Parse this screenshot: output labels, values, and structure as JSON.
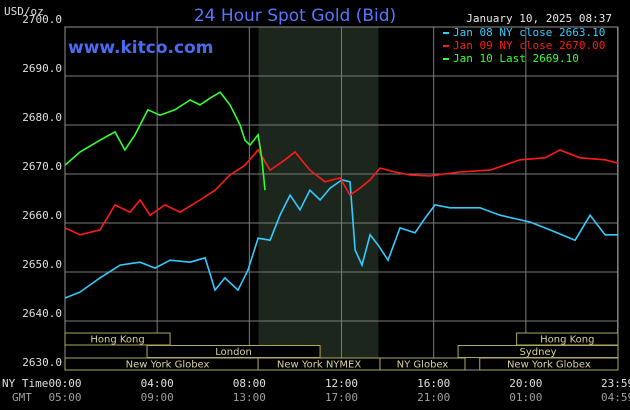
{
  "chart_data": {
    "type": "line",
    "title": "24 Hour Spot Gold (Bid)",
    "unit_label": "USD/oz",
    "timestamp": "January 10, 2025 08:37",
    "watermark": "www.kitco.com",
    "time_zones": [
      "NY Time",
      "GMT"
    ],
    "xlim": [
      0,
      24
    ],
    "xticks": [
      {
        "value": 0,
        "label": "00:00"
      },
      {
        "value": 4,
        "label": "04:00"
      },
      {
        "value": 8,
        "label": "08:00"
      },
      {
        "value": 12,
        "label": "12:00"
      },
      {
        "value": 16,
        "label": "16:00"
      },
      {
        "value": 20,
        "label": "20:00"
      },
      {
        "value": 23.98,
        "label": "23:59"
      }
    ],
    "gmt_ticks": [
      {
        "value": 0,
        "label": "05:00"
      },
      {
        "value": 4,
        "label": "09:00"
      },
      {
        "value": 8,
        "label": "13:00"
      },
      {
        "value": 12,
        "label": "17:00"
      },
      {
        "value": 16,
        "label": "21:00"
      },
      {
        "value": 20,
        "label": "01:00"
      },
      {
        "value": 23.98,
        "label": "04:59"
      }
    ],
    "ylim": [
      2630,
      2700
    ],
    "yticks": [
      {
        "value": 2630,
        "label": "2630.0"
      },
      {
        "value": 2640,
        "label": "2640.0"
      },
      {
        "value": 2650,
        "label": "2650.0"
      },
      {
        "value": 2660,
        "label": "2660.0"
      },
      {
        "value": 2670,
        "label": "2670.0"
      },
      {
        "value": 2680,
        "label": "2680.0"
      },
      {
        "value": 2690,
        "label": "2690.0"
      },
      {
        "value": 2700,
        "label": "2700.0"
      }
    ],
    "grid": true,
    "shade": [
      8.4,
      13.6
    ],
    "session_rows": [
      [
        {
          "label": "Hong Kong",
          "start": 0,
          "end": 4.56
        },
        {
          "label": "Hong Kong",
          "start": 19.6,
          "end": 24
        }
      ],
      [
        {
          "label": "London",
          "start": 3.56,
          "end": 11.07
        },
        {
          "label": "Sydney",
          "start": 17.06,
          "end": 24
        }
      ],
      [
        {
          "label": "New York Globex",
          "start": 0,
          "end": 8.9
        },
        {
          "label": "New York NYMEX",
          "start": 8.38,
          "end": 13.67
        },
        {
          "label": "NY Globex",
          "start": 13.67,
          "end": 17.36
        },
        {
          "label": "New York Globex",
          "start": 18.0,
          "end": 24
        }
      ]
    ],
    "series": [
      {
        "name": "Jan 08 NY close 2663.10",
        "color": "#33ccff",
        "x": [
          0,
          0.65,
          1.52,
          2.39,
          3.26,
          3.91,
          4.56,
          5.43,
          6.08,
          6.51,
          6.94,
          7.51,
          7.94,
          8.38,
          8.9,
          9.33,
          9.77,
          10.2,
          10.63,
          11.07,
          11.5,
          12.02,
          12.37,
          12.59,
          12.89,
          13.24,
          13.59,
          14.02,
          14.54,
          15.19,
          15.63,
          16.06,
          16.71,
          18.01,
          18.88,
          20.18,
          21.05,
          22.14,
          22.79,
          23.44,
          24
        ],
        "values": [
          2644.7,
          2645.9,
          2648.8,
          2651.4,
          2652,
          2650.8,
          2652.4,
          2652,
          2652.9,
          2646.3,
          2648.8,
          2646.3,
          2650.4,
          2656.9,
          2656.5,
          2661.6,
          2665.7,
          2662.7,
          2666.7,
          2664.7,
          2667.1,
          2668.8,
          2668.4,
          2654.5,
          2651.4,
          2657.6,
          2655.5,
          2652.4,
          2659,
          2658,
          2661,
          2663.7,
          2663.1,
          2663.1,
          2661.6,
          2660.2,
          2658.6,
          2656.5,
          2661.6,
          2657.6,
          2657.6
        ]
      },
      {
        "name": "Jan 09 NY close 2670.00",
        "color": "#ff1a1a",
        "x": [
          0,
          0.65,
          1.52,
          2.17,
          2.82,
          3.26,
          3.69,
          4.34,
          4.99,
          5.86,
          6.51,
          7.16,
          7.81,
          8.38,
          8.9,
          9.55,
          9.98,
          10.63,
          11.28,
          11.94,
          12.37,
          12.8,
          13.24,
          13.67,
          14.32,
          14.97,
          15.84,
          17.14,
          18.45,
          19.75,
          20.83,
          21.48,
          22.35,
          23.44,
          24
        ],
        "values": [
          2659,
          2657.6,
          2658.6,
          2663.7,
          2662.2,
          2664.7,
          2661.6,
          2663.7,
          2662.2,
          2664.7,
          2666.7,
          2669.8,
          2671.8,
          2674.9,
          2670.8,
          2672.9,
          2674.5,
          2670.8,
          2668.4,
          2669.2,
          2665.7,
          2667.1,
          2668.8,
          2671.2,
          2670.4,
          2669.8,
          2669.6,
          2670.4,
          2670.8,
          2672.9,
          2673.3,
          2674.9,
          2673.3,
          2672.9,
          2672.2
        ]
      },
      {
        "name": "Jan 10 Last 2669.10",
        "color": "#33ff33",
        "x": [
          0,
          0.65,
          1.52,
          2.17,
          2.6,
          3.04,
          3.6,
          4.12,
          4.77,
          5.43,
          5.86,
          6.3,
          6.73,
          7.16,
          7.6,
          7.81,
          8.03,
          8.38,
          8.55,
          8.68
        ],
        "values": [
          2671.8,
          2674.5,
          2676.9,
          2678.6,
          2674.9,
          2678,
          2683.1,
          2682,
          2683.1,
          2685.1,
          2684.1,
          2685.5,
          2686.7,
          2684.1,
          2680,
          2676.9,
          2675.9,
          2678,
          2672.9,
          2666.7
        ]
      }
    ]
  }
}
